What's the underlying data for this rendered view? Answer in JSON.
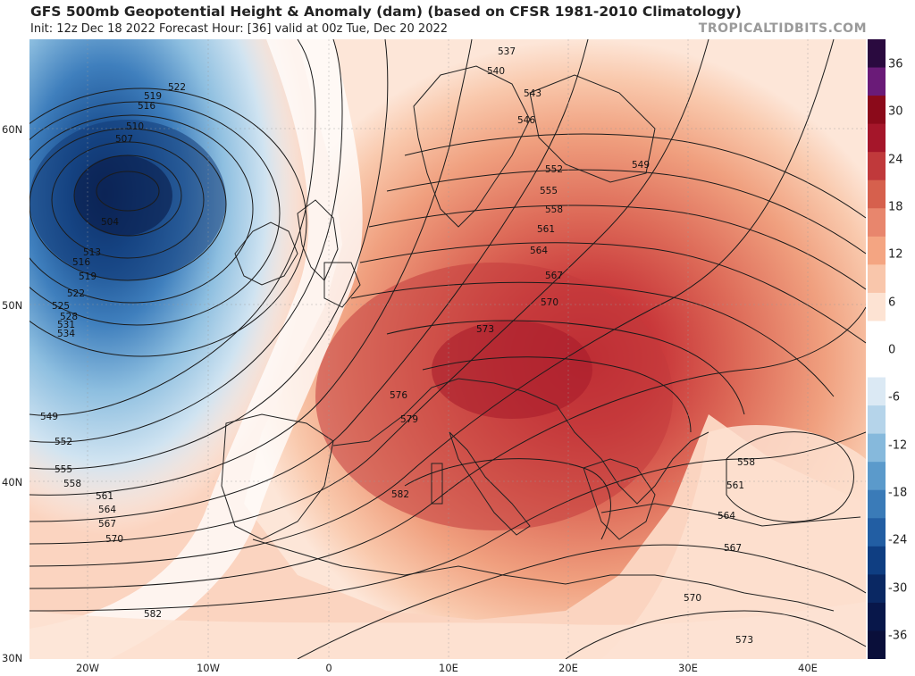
{
  "header": {
    "title": "GFS 500mb Geopotential Height & Anomaly (dam) (based on CFSR 1981-2010 Climatology)",
    "subtitle": "Init: 12z Dec 18 2022   Forecast Hour: [36]   valid at 00z Tue, Dec 20 2022",
    "watermark": "TROPICALTIDBITS.COM"
  },
  "map": {
    "lat_labels": [
      "60N",
      "50N",
      "40N",
      "30N"
    ],
    "lon_labels": [
      "20W",
      "10W",
      "0",
      "10E",
      "20E",
      "30E",
      "40E"
    ],
    "lon_range": [
      -25,
      45
    ],
    "lat_range": [
      30,
      65
    ],
    "contour_labels": [
      "522",
      "519",
      "516",
      "510",
      "507",
      "504",
      "513",
      "516",
      "519",
      "522",
      "525",
      "528",
      "531",
      "534",
      "549",
      "552",
      "555",
      "558",
      "561",
      "564",
      "567",
      "570",
      "582",
      "537",
      "540",
      "543",
      "546",
      "549",
      "552",
      "555",
      "558",
      "561",
      "564",
      "567",
      "570",
      "573",
      "576",
      "579",
      "582",
      "558",
      "561",
      "564",
      "567",
      "570",
      "573"
    ]
  },
  "colorbar": {
    "ticks": [
      "36",
      "30",
      "24",
      "18",
      "12",
      "6",
      "0",
      "-6",
      "-12",
      "-18",
      "-24",
      "-30",
      "-36"
    ],
    "colors": [
      "#2a0a3f",
      "#6a1b78",
      "#8b0a1a",
      "#a5162a",
      "#c0393b",
      "#d6604d",
      "#e8866d",
      "#f4a582",
      "#f9c6ab",
      "#fde3d3",
      "#ffffff",
      "#ffffff",
      "#dbe9f4",
      "#b5d4ea",
      "#86b9dc",
      "#5b9acb",
      "#3a7bb8",
      "#225ea3",
      "#0f3e82",
      "#0a2863",
      "#08174a",
      "#0a0f3a"
    ]
  }
}
